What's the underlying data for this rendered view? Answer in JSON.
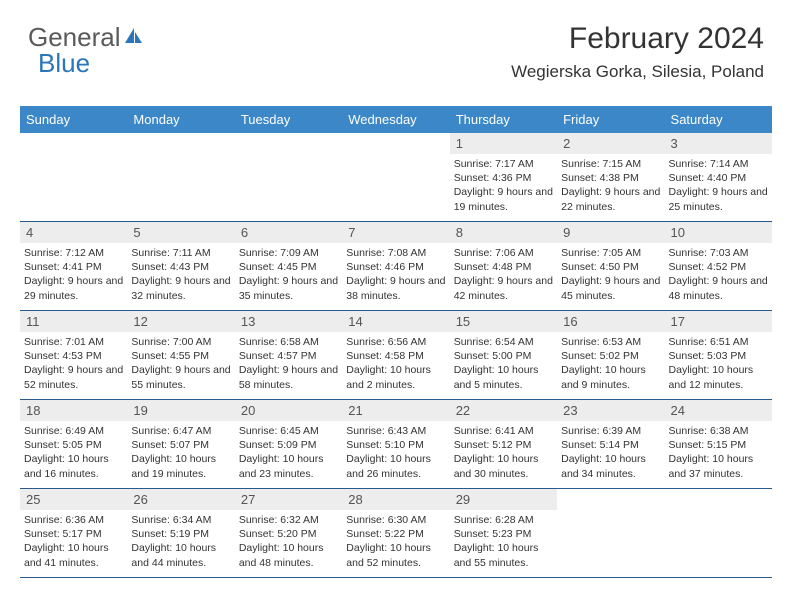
{
  "brand": {
    "text1": "General",
    "text2": "Blue"
  },
  "header": {
    "month_year": "February 2024",
    "location": "Wegierska Gorka, Silesia, Poland"
  },
  "colors": {
    "header_bg": "#3b87c8",
    "daynum_bg": "#ededed",
    "border": "#2a5a8a",
    "text": "#333333",
    "logo_gray": "#5a5a5a",
    "logo_blue": "#2a76b8"
  },
  "weekdays": [
    "Sunday",
    "Monday",
    "Tuesday",
    "Wednesday",
    "Thursday",
    "Friday",
    "Saturday"
  ],
  "weeks": [
    [
      null,
      null,
      null,
      null,
      {
        "n": "1",
        "sr": "7:17 AM",
        "ss": "4:36 PM",
        "dl": "9 hours and 19 minutes."
      },
      {
        "n": "2",
        "sr": "7:15 AM",
        "ss": "4:38 PM",
        "dl": "9 hours and 22 minutes."
      },
      {
        "n": "3",
        "sr": "7:14 AM",
        "ss": "4:40 PM",
        "dl": "9 hours and 25 minutes."
      }
    ],
    [
      {
        "n": "4",
        "sr": "7:12 AM",
        "ss": "4:41 PM",
        "dl": "9 hours and 29 minutes."
      },
      {
        "n": "5",
        "sr": "7:11 AM",
        "ss": "4:43 PM",
        "dl": "9 hours and 32 minutes."
      },
      {
        "n": "6",
        "sr": "7:09 AM",
        "ss": "4:45 PM",
        "dl": "9 hours and 35 minutes."
      },
      {
        "n": "7",
        "sr": "7:08 AM",
        "ss": "4:46 PM",
        "dl": "9 hours and 38 minutes."
      },
      {
        "n": "8",
        "sr": "7:06 AM",
        "ss": "4:48 PM",
        "dl": "9 hours and 42 minutes."
      },
      {
        "n": "9",
        "sr": "7:05 AM",
        "ss": "4:50 PM",
        "dl": "9 hours and 45 minutes."
      },
      {
        "n": "10",
        "sr": "7:03 AM",
        "ss": "4:52 PM",
        "dl": "9 hours and 48 minutes."
      }
    ],
    [
      {
        "n": "11",
        "sr": "7:01 AM",
        "ss": "4:53 PM",
        "dl": "9 hours and 52 minutes."
      },
      {
        "n": "12",
        "sr": "7:00 AM",
        "ss": "4:55 PM",
        "dl": "9 hours and 55 minutes."
      },
      {
        "n": "13",
        "sr": "6:58 AM",
        "ss": "4:57 PM",
        "dl": "9 hours and 58 minutes."
      },
      {
        "n": "14",
        "sr": "6:56 AM",
        "ss": "4:58 PM",
        "dl": "10 hours and 2 minutes."
      },
      {
        "n": "15",
        "sr": "6:54 AM",
        "ss": "5:00 PM",
        "dl": "10 hours and 5 minutes."
      },
      {
        "n": "16",
        "sr": "6:53 AM",
        "ss": "5:02 PM",
        "dl": "10 hours and 9 minutes."
      },
      {
        "n": "17",
        "sr": "6:51 AM",
        "ss": "5:03 PM",
        "dl": "10 hours and 12 minutes."
      }
    ],
    [
      {
        "n": "18",
        "sr": "6:49 AM",
        "ss": "5:05 PM",
        "dl": "10 hours and 16 minutes."
      },
      {
        "n": "19",
        "sr": "6:47 AM",
        "ss": "5:07 PM",
        "dl": "10 hours and 19 minutes."
      },
      {
        "n": "20",
        "sr": "6:45 AM",
        "ss": "5:09 PM",
        "dl": "10 hours and 23 minutes."
      },
      {
        "n": "21",
        "sr": "6:43 AM",
        "ss": "5:10 PM",
        "dl": "10 hours and 26 minutes."
      },
      {
        "n": "22",
        "sr": "6:41 AM",
        "ss": "5:12 PM",
        "dl": "10 hours and 30 minutes."
      },
      {
        "n": "23",
        "sr": "6:39 AM",
        "ss": "5:14 PM",
        "dl": "10 hours and 34 minutes."
      },
      {
        "n": "24",
        "sr": "6:38 AM",
        "ss": "5:15 PM",
        "dl": "10 hours and 37 minutes."
      }
    ],
    [
      {
        "n": "25",
        "sr": "6:36 AM",
        "ss": "5:17 PM",
        "dl": "10 hours and 41 minutes."
      },
      {
        "n": "26",
        "sr": "6:34 AM",
        "ss": "5:19 PM",
        "dl": "10 hours and 44 minutes."
      },
      {
        "n": "27",
        "sr": "6:32 AM",
        "ss": "5:20 PM",
        "dl": "10 hours and 48 minutes."
      },
      {
        "n": "28",
        "sr": "6:30 AM",
        "ss": "5:22 PM",
        "dl": "10 hours and 52 minutes."
      },
      {
        "n": "29",
        "sr": "6:28 AM",
        "ss": "5:23 PM",
        "dl": "10 hours and 55 minutes."
      },
      null,
      null
    ]
  ],
  "labels": {
    "sunrise": "Sunrise:",
    "sunset": "Sunset:",
    "daylight": "Daylight:"
  }
}
